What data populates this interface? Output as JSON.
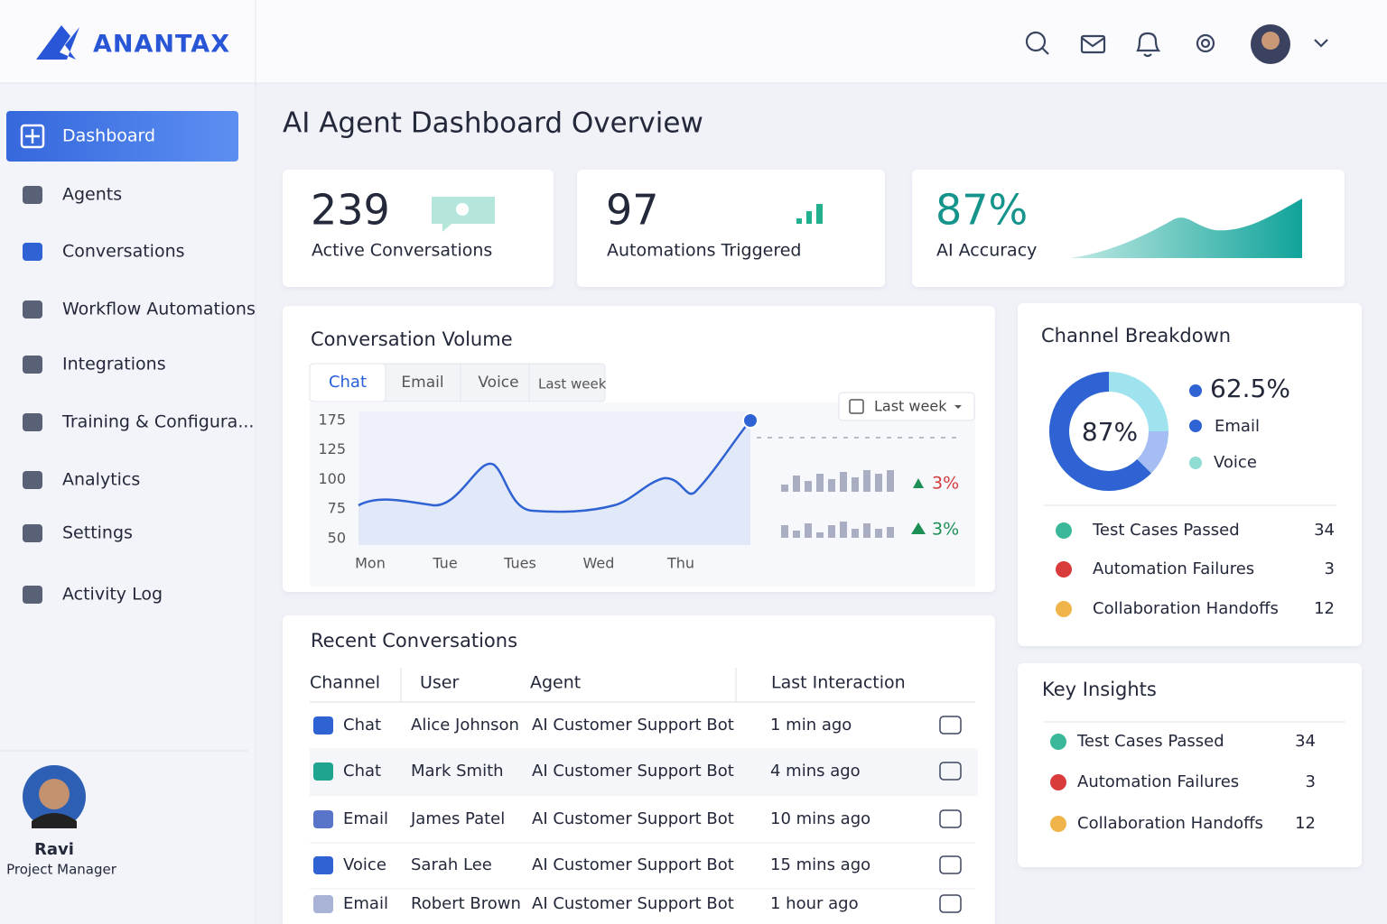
{
  "brand": "ANANTAX",
  "nav": [
    "Dashboard",
    "Agents",
    "Conversations",
    "Workflow Automations",
    "Integrations",
    "Training & Configura...",
    "Analytics",
    "Settings",
    "Activity Log"
  ],
  "user": {
    "name": "Ravi",
    "role": "Project Manager"
  },
  "page_title": "AI Agent Dashboard Overview",
  "stats": [
    {
      "value": 239,
      "label": "Active Conversations"
    },
    {
      "value": 97,
      "label": "Automations Triggered"
    },
    {
      "value": "87%",
      "label": "AI Accuracy"
    }
  ],
  "volume": {
    "title": "Conversation Volume",
    "tabs": [
      "Chat",
      "Email",
      "Voice",
      "Last week"
    ],
    "dropdown": "Last week",
    "y_labels": [
      175,
      125,
      100,
      75,
      50
    ],
    "x_labels": [
      "Mon",
      "Tue",
      "Tues",
      "Wed",
      "Thu"
    ],
    "changes": [
      "3%",
      "3%"
    ]
  },
  "recent": {
    "title": "Recent Conversations",
    "headers": [
      "Channel",
      "User",
      "Agent",
      "Last Interaction"
    ],
    "rows": [
      [
        "Chat",
        "Alice Johnson",
        "AI Customer Support Bot",
        "1 min ago"
      ],
      [
        "Chat",
        "Mark Smith",
        "AI Customer Support Bot",
        "4 mins ago"
      ],
      [
        "Email",
        "James Patel",
        "AI Customer Support Bot",
        "10 mins ago"
      ],
      [
        "Voice",
        "Sarah Lee",
        "AI Customer Support Bot",
        "15 mins ago"
      ],
      [
        "Email",
        "Robert Brown",
        "AI Customer Support Bot",
        "1 hour ago"
      ]
    ]
  },
  "channel": {
    "title": "Channel Breakdown",
    "center": "87%",
    "share": "62.5%",
    "legend": [
      "Email",
      "Voice"
    ],
    "items": [
      {
        "label": "Test Cases Passed",
        "value": 34
      },
      {
        "label": "Automation Failures",
        "value": 3
      },
      {
        "label": "Collaboration Handoffs",
        "value": 12
      }
    ]
  },
  "insights": {
    "title": "Key Insights",
    "items": [
      {
        "label": "Test Cases Passed",
        "value": 34
      },
      {
        "label": "Automation Failures",
        "value": 3
      },
      {
        "label": "Collaboration Handoffs",
        "value": 12
      }
    ]
  }
}
